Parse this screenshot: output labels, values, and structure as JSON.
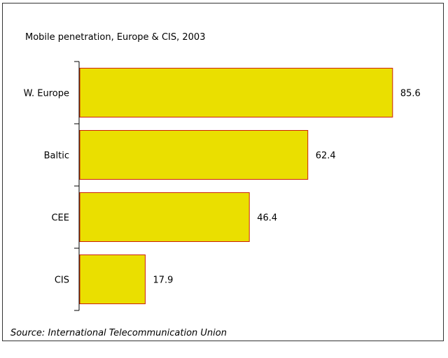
{
  "chart_data": {
    "type": "bar",
    "orientation": "horizontal",
    "title": "Mobile penetration, Europe & CIS, 2003",
    "categories": [
      "W. Europe",
      "Baltic",
      "CEE",
      "CIS"
    ],
    "values": [
      85.6,
      62.4,
      46.4,
      17.9
    ],
    "data_labels": [
      "85.6",
      "62.4",
      "46.4",
      "17.9"
    ],
    "xlabel": "",
    "ylabel": "",
    "xlim": [
      0,
      100
    ],
    "grid": false,
    "legend": "none",
    "bar_color": "#eadf00",
    "bar_edge_color": "#cc2200",
    "source": "Source: International Telecommunication Union"
  }
}
